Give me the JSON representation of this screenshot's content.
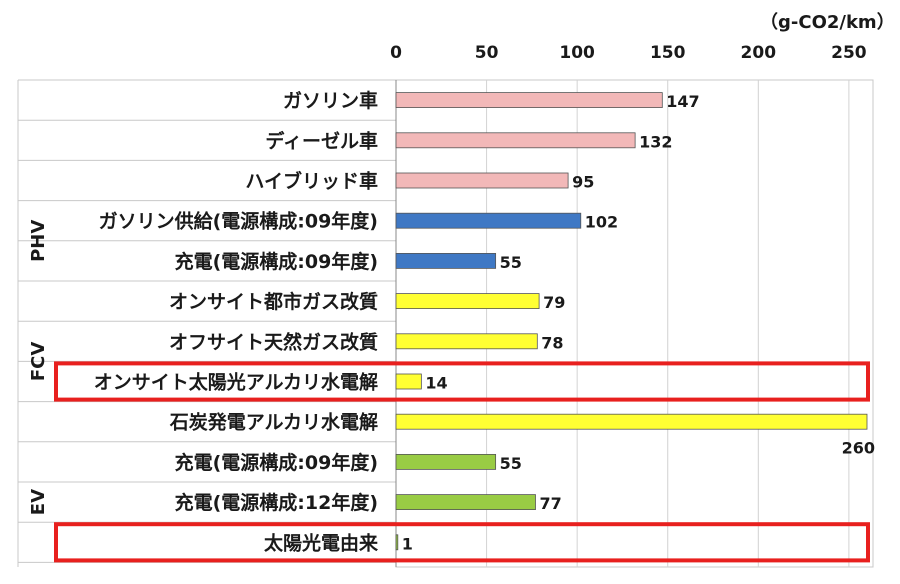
{
  "chart_data": {
    "type": "bar",
    "orientation": "horizontal",
    "unit": "（g-CO2/km）",
    "xlim": [
      0,
      270
    ],
    "xticks": [
      "0",
      "50",
      "100",
      "150",
      "200",
      "250"
    ],
    "grid": true,
    "colors": {
      "pink": "#f2b8b8",
      "blue": "#3f78c4",
      "yellow": "#ffff33",
      "green": "#99cc44",
      "highlight": "#e8201e"
    },
    "groups": [
      {
        "label": "PHV",
        "rows": [
          3,
          4
        ]
      },
      {
        "label": "FCV",
        "rows": [
          5,
          8
        ]
      },
      {
        "label": "EV",
        "rows": [
          9,
          11
        ]
      }
    ],
    "categories": [
      "ガソリン車",
      "ディーゼル車",
      "ハイブリッド車",
      "ガソリン供給(電源構成:09年度)",
      "充電(電源構成:09年度)",
      "オンサイト都市ガス改質",
      "オフサイト天然ガス改質",
      "オンサイト太陽光アルカリ水電解",
      "石炭発電アルカリ水電解",
      "充電(電源構成:09年度)",
      "充電(電源構成:12年度)",
      "太陽光電由来"
    ],
    "values": [
      147,
      132,
      95,
      102,
      55,
      79,
      78,
      14,
      260,
      55,
      77,
      1
    ],
    "value_labels": [
      "147",
      "132",
      "95",
      "102",
      "55",
      "79",
      "78",
      "14",
      "260",
      "55",
      "77",
      "1"
    ],
    "bar_colors": [
      "pink",
      "pink",
      "pink",
      "blue",
      "blue",
      "yellow",
      "yellow",
      "yellow",
      "yellow",
      "green",
      "green",
      "green"
    ],
    "highlighted_rows": [
      7,
      11
    ]
  }
}
